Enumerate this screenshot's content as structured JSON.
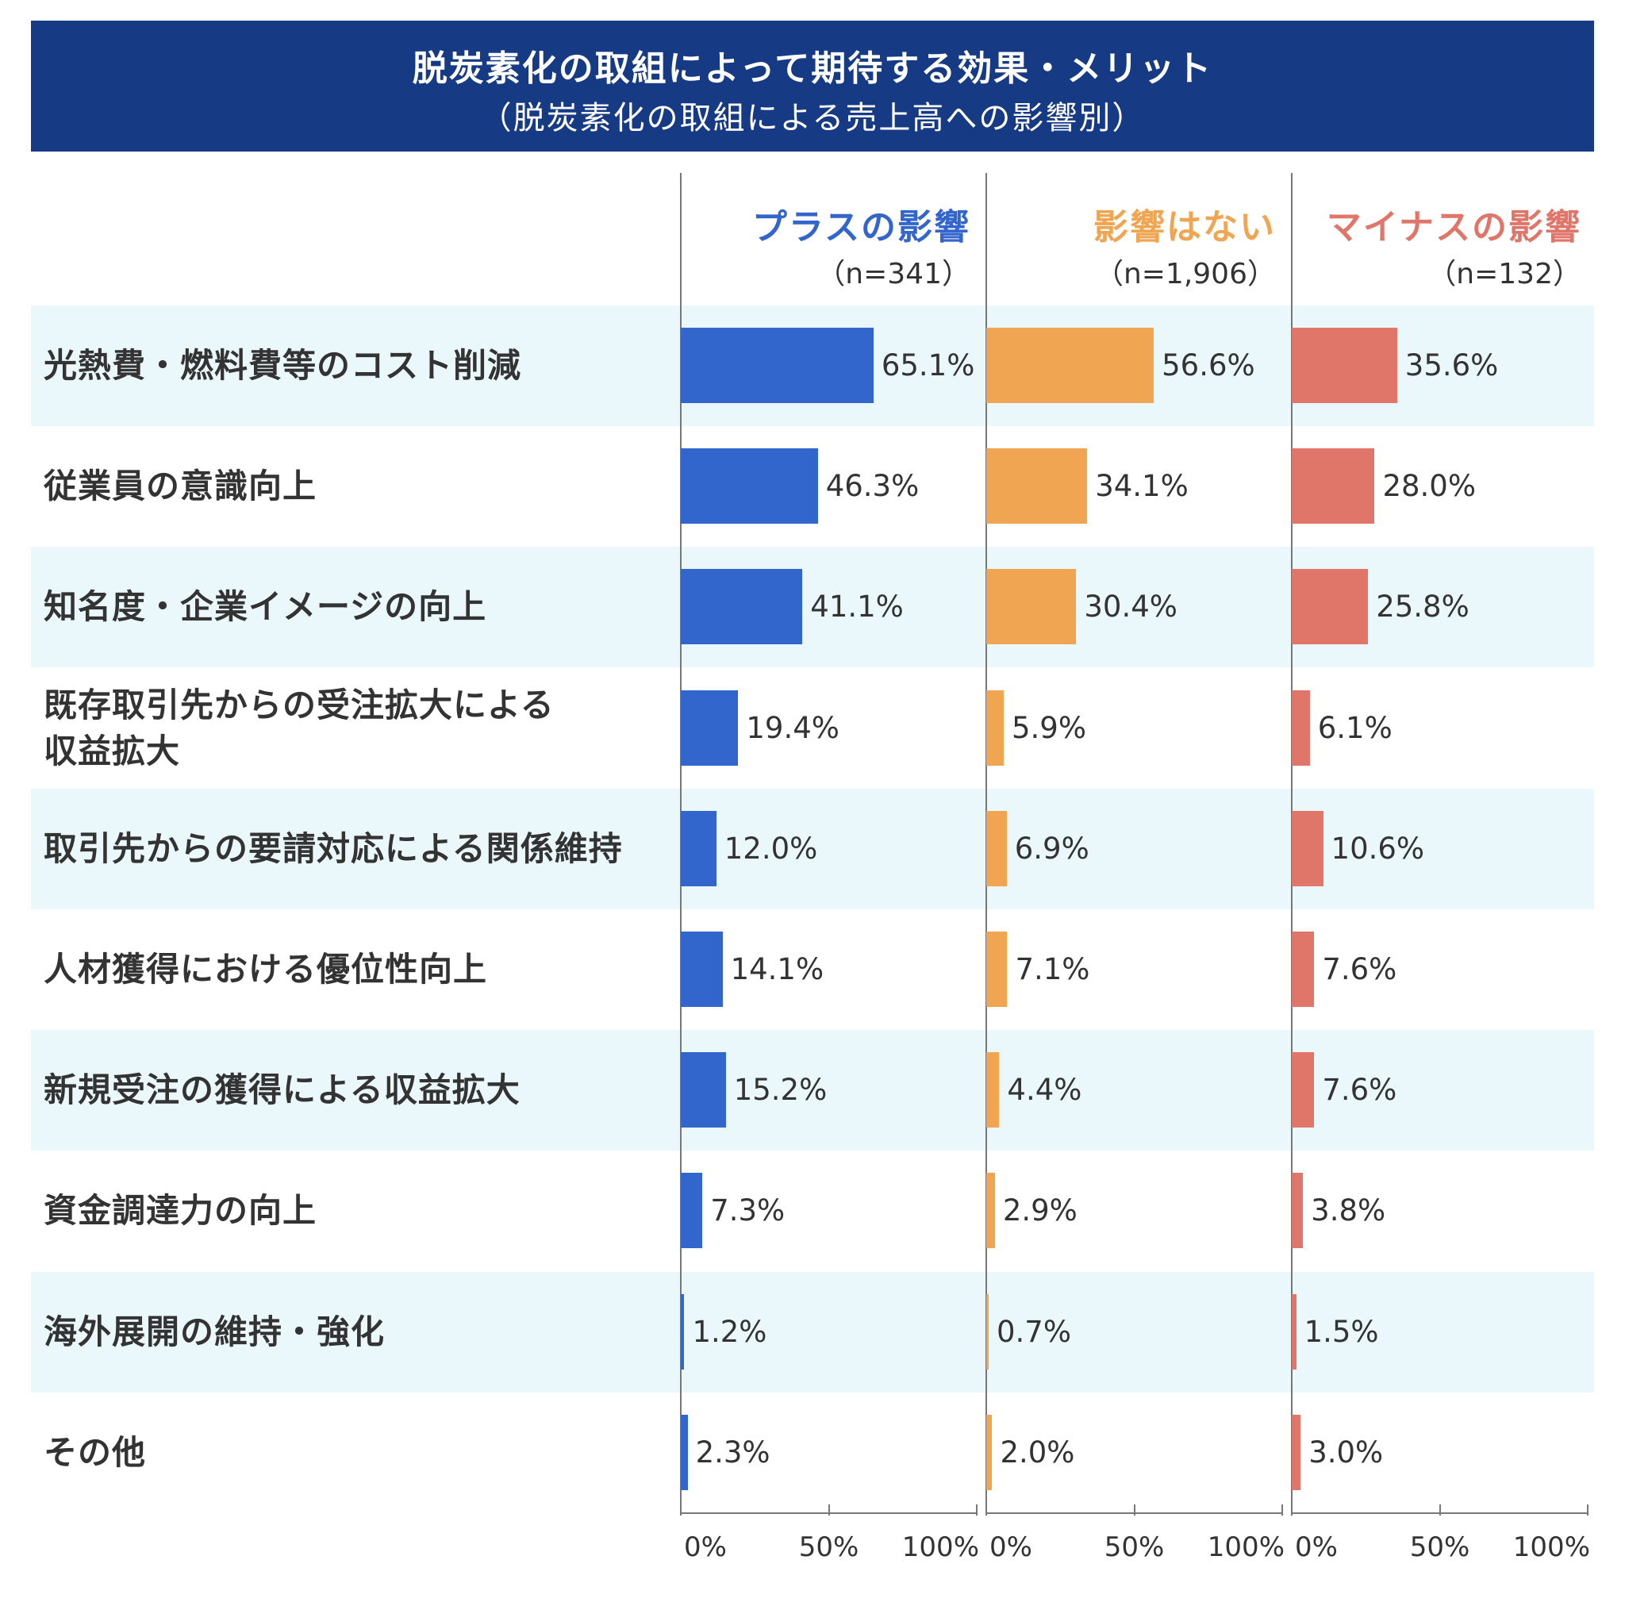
{
  "header": {
    "title": "脱炭素化の取組によって期待する効果・メリット",
    "subtitle": "（脱炭素化の取組による売上高への影響別）"
  },
  "colors": {
    "header_bg": "#173a84",
    "band": "#eaf8fc",
    "axis": "#777777"
  },
  "chart_data": {
    "type": "bar",
    "orientation": "horizontal",
    "title": "脱炭素化の取組によって期待する効果・メリット",
    "subtitle": "（脱炭素化の取組による売上高への影響別）",
    "categories": [
      "光熱費・燃料費等のコスト削減",
      "従業員の意識向上",
      "知名度・企業イメージの向上",
      "既存取引先からの受注拡大による収益拡大",
      "取引先からの要請対応による関係維持",
      "人材獲得における優位性向上",
      "新規受注の獲得による収益拡大",
      "資金調達力の向上",
      "海外展開の維持・強化",
      "その他"
    ],
    "category_lines": [
      [
        "光熱費・燃料費等のコスト削減"
      ],
      [
        "従業員の意識向上"
      ],
      [
        "知名度・企業イメージの向上"
      ],
      [
        "既存取引先からの受注拡大による",
        "収益拡大"
      ],
      [
        "取引先からの要請対応による関係維持"
      ],
      [
        "人材獲得における優位性向上"
      ],
      [
        "新規受注の獲得による収益拡大"
      ],
      [
        "資金調達力の向上"
      ],
      [
        "海外展開の維持・強化"
      ],
      [
        "その他"
      ]
    ],
    "xlim": [
      0,
      100
    ],
    "xticks": [
      "0%",
      "50%",
      "100%"
    ],
    "grid": false,
    "series": [
      {
        "name": "プラスの影響",
        "n_label": "（n=341）",
        "color": "#3366cc",
        "values": [
          65.1,
          46.3,
          41.1,
          19.4,
          12.0,
          14.1,
          15.2,
          7.3,
          1.2,
          2.3
        ],
        "labels": [
          "65.1%",
          "46.3%",
          "41.1%",
          "19.4%",
          "12.0%",
          "14.1%",
          "15.2%",
          "7.3%",
          "1.2%",
          "2.3%"
        ]
      },
      {
        "name": "影響はない",
        "n_label": "（n=1,906）",
        "color": "#f0a552",
        "values": [
          56.6,
          34.1,
          30.4,
          5.9,
          6.9,
          7.1,
          4.4,
          2.9,
          0.7,
          2.0
        ],
        "labels": [
          "56.6%",
          "34.1%",
          "30.4%",
          "5.9%",
          "6.9%",
          "7.1%",
          "4.4%",
          "2.9%",
          "0.7%",
          "2.0%"
        ]
      },
      {
        "name": "マイナスの影響",
        "n_label": "（n=132）",
        "color": "#e0766a",
        "values": [
          35.6,
          28.0,
          25.8,
          6.1,
          10.6,
          7.6,
          7.6,
          3.8,
          1.5,
          3.0
        ],
        "labels": [
          "35.6%",
          "28.0%",
          "25.8%",
          "6.1%",
          "10.6%",
          "7.6%",
          "7.6%",
          "3.8%",
          "1.5%",
          "3.0%"
        ]
      }
    ]
  }
}
